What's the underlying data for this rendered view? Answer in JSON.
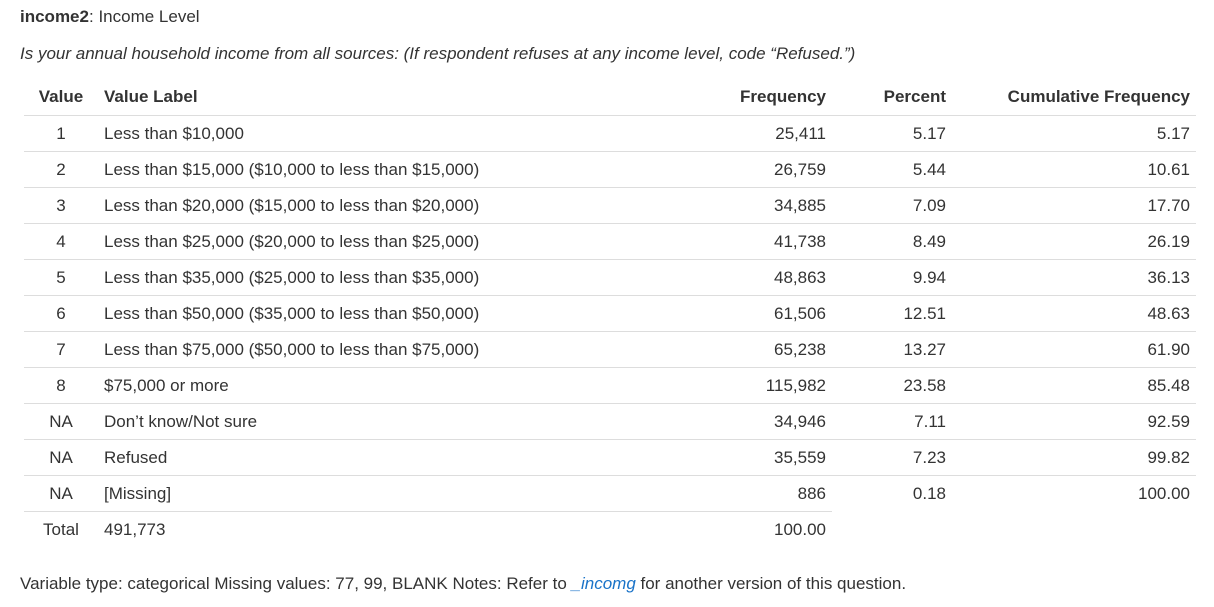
{
  "variable": {
    "name": "income2",
    "title": "Income Level",
    "question": "Is your annual household income from all sources: (If respondent refuses at any income level, code “Refused.”)"
  },
  "table": {
    "headers": {
      "value": "Value",
      "label": "Value Label",
      "frequency": "Frequency",
      "percent": "Percent",
      "cumulative": "Cumulative Frequency"
    },
    "rows": [
      {
        "value": "1",
        "label": "Less than $10,000",
        "frequency": "25,411",
        "percent": "5.17",
        "cumulative": "5.17"
      },
      {
        "value": "2",
        "label": "Less than $15,000 ($10,000 to less than $15,000)",
        "frequency": "26,759",
        "percent": "5.44",
        "cumulative": "10.61"
      },
      {
        "value": "3",
        "label": "Less than $20,000 ($15,000 to less than $20,000)",
        "frequency": "34,885",
        "percent": "7.09",
        "cumulative": "17.70"
      },
      {
        "value": "4",
        "label": "Less than $25,000 ($20,000 to less than $25,000)",
        "frequency": "41,738",
        "percent": "8.49",
        "cumulative": "26.19"
      },
      {
        "value": "5",
        "label": "Less than $35,000 ($25,000 to less than $35,000)",
        "frequency": "48,863",
        "percent": "9.94",
        "cumulative": "36.13"
      },
      {
        "value": "6",
        "label": "Less than $50,000 ($35,000 to less than $50,000)",
        "frequency": "61,506",
        "percent": "12.51",
        "cumulative": "48.63"
      },
      {
        "value": "7",
        "label": "Less than $75,000 ($50,000 to less than $75,000)",
        "frequency": "65,238",
        "percent": "13.27",
        "cumulative": "61.90"
      },
      {
        "value": "8",
        "label": "$75,000 or more",
        "frequency": "115,982",
        "percent": "23.58",
        "cumulative": "85.48"
      },
      {
        "value": "NA",
        "label": "Don’t know/Not sure",
        "frequency": "34,946",
        "percent": "7.11",
        "cumulative": "92.59"
      },
      {
        "value": "NA",
        "label": "Refused",
        "frequency": "35,559",
        "percent": "7.23",
        "cumulative": "99.82"
      },
      {
        "value": "NA",
        "label": "[Missing]",
        "frequency": "886",
        "percent": "0.18",
        "cumulative": "100.00"
      }
    ],
    "total": {
      "value": "Total",
      "label": "491,773",
      "frequency": "100.00"
    }
  },
  "footer": {
    "text_before": "Variable type: categorical Missing values: 77, 99, BLANK Notes: Refer to ",
    "link_text": "_incomg",
    "text_after": " for another version of this question."
  },
  "colors": {
    "link": "#1a73c8",
    "text": "#333333",
    "rule": "#dddddd"
  }
}
